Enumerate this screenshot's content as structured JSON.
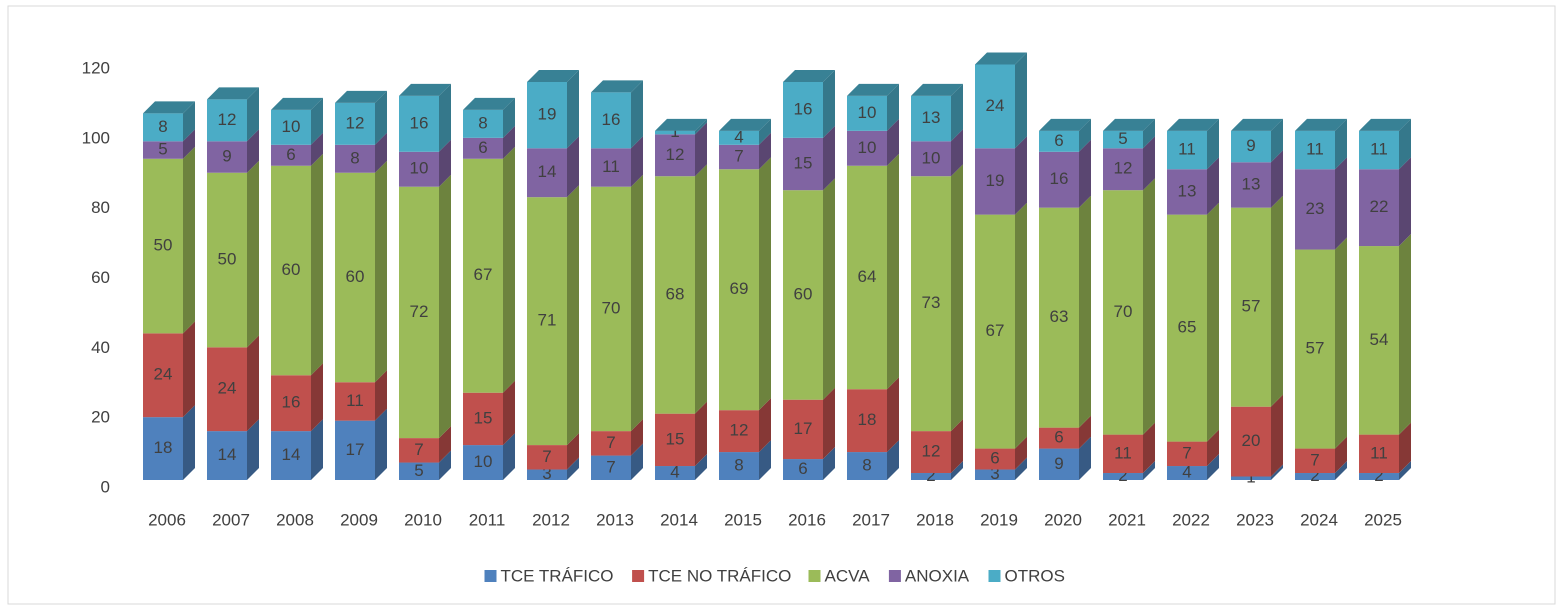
{
  "chart_data": {
    "type": "bar3d_stacked",
    "categories": [
      "2006",
      "2007",
      "2008",
      "2009",
      "2010",
      "2011",
      "2012",
      "2013",
      "2014",
      "2015",
      "2016",
      "2017",
      "2018",
      "2019",
      "2020",
      "2021",
      "2022",
      "2023",
      "2024",
      "2025"
    ],
    "series": [
      {
        "name": "TCE TRÁFICO",
        "color": "#4f81bd",
        "values": [
          18,
          14,
          14,
          17,
          5,
          10,
          3,
          7,
          4,
          8,
          6,
          8,
          2,
          3,
          9,
          2,
          4,
          1,
          2,
          2
        ]
      },
      {
        "name": "TCE NO TRÁFICO",
        "color": "#c0504d",
        "values": [
          24,
          24,
          16,
          11,
          7,
          15,
          7,
          7,
          15,
          12,
          17,
          18,
          12,
          6,
          6,
          11,
          7,
          20,
          7,
          11
        ]
      },
      {
        "name": "ACVA",
        "color": "#9bbb59",
        "values": [
          50,
          50,
          60,
          60,
          72,
          67,
          71,
          70,
          68,
          69,
          60,
          64,
          73,
          67,
          63,
          70,
          65,
          57,
          57,
          54
        ]
      },
      {
        "name": "ANOXIA",
        "color": "#8064a2",
        "values": [
          5,
          9,
          6,
          8,
          10,
          6,
          14,
          11,
          12,
          7,
          15,
          10,
          10,
          19,
          16,
          12,
          13,
          13,
          23,
          22
        ]
      },
      {
        "name": "OTROS",
        "color": "#4bacc6",
        "values": [
          8,
          12,
          10,
          12,
          16,
          8,
          19,
          16,
          1,
          4,
          16,
          10,
          13,
          24,
          6,
          5,
          11,
          9,
          11,
          11
        ]
      }
    ],
    "ylim": [
      0,
      120
    ],
    "yticks": [
      0,
      20,
      40,
      60,
      80,
      100,
      120
    ],
    "legend": "bottom"
  }
}
